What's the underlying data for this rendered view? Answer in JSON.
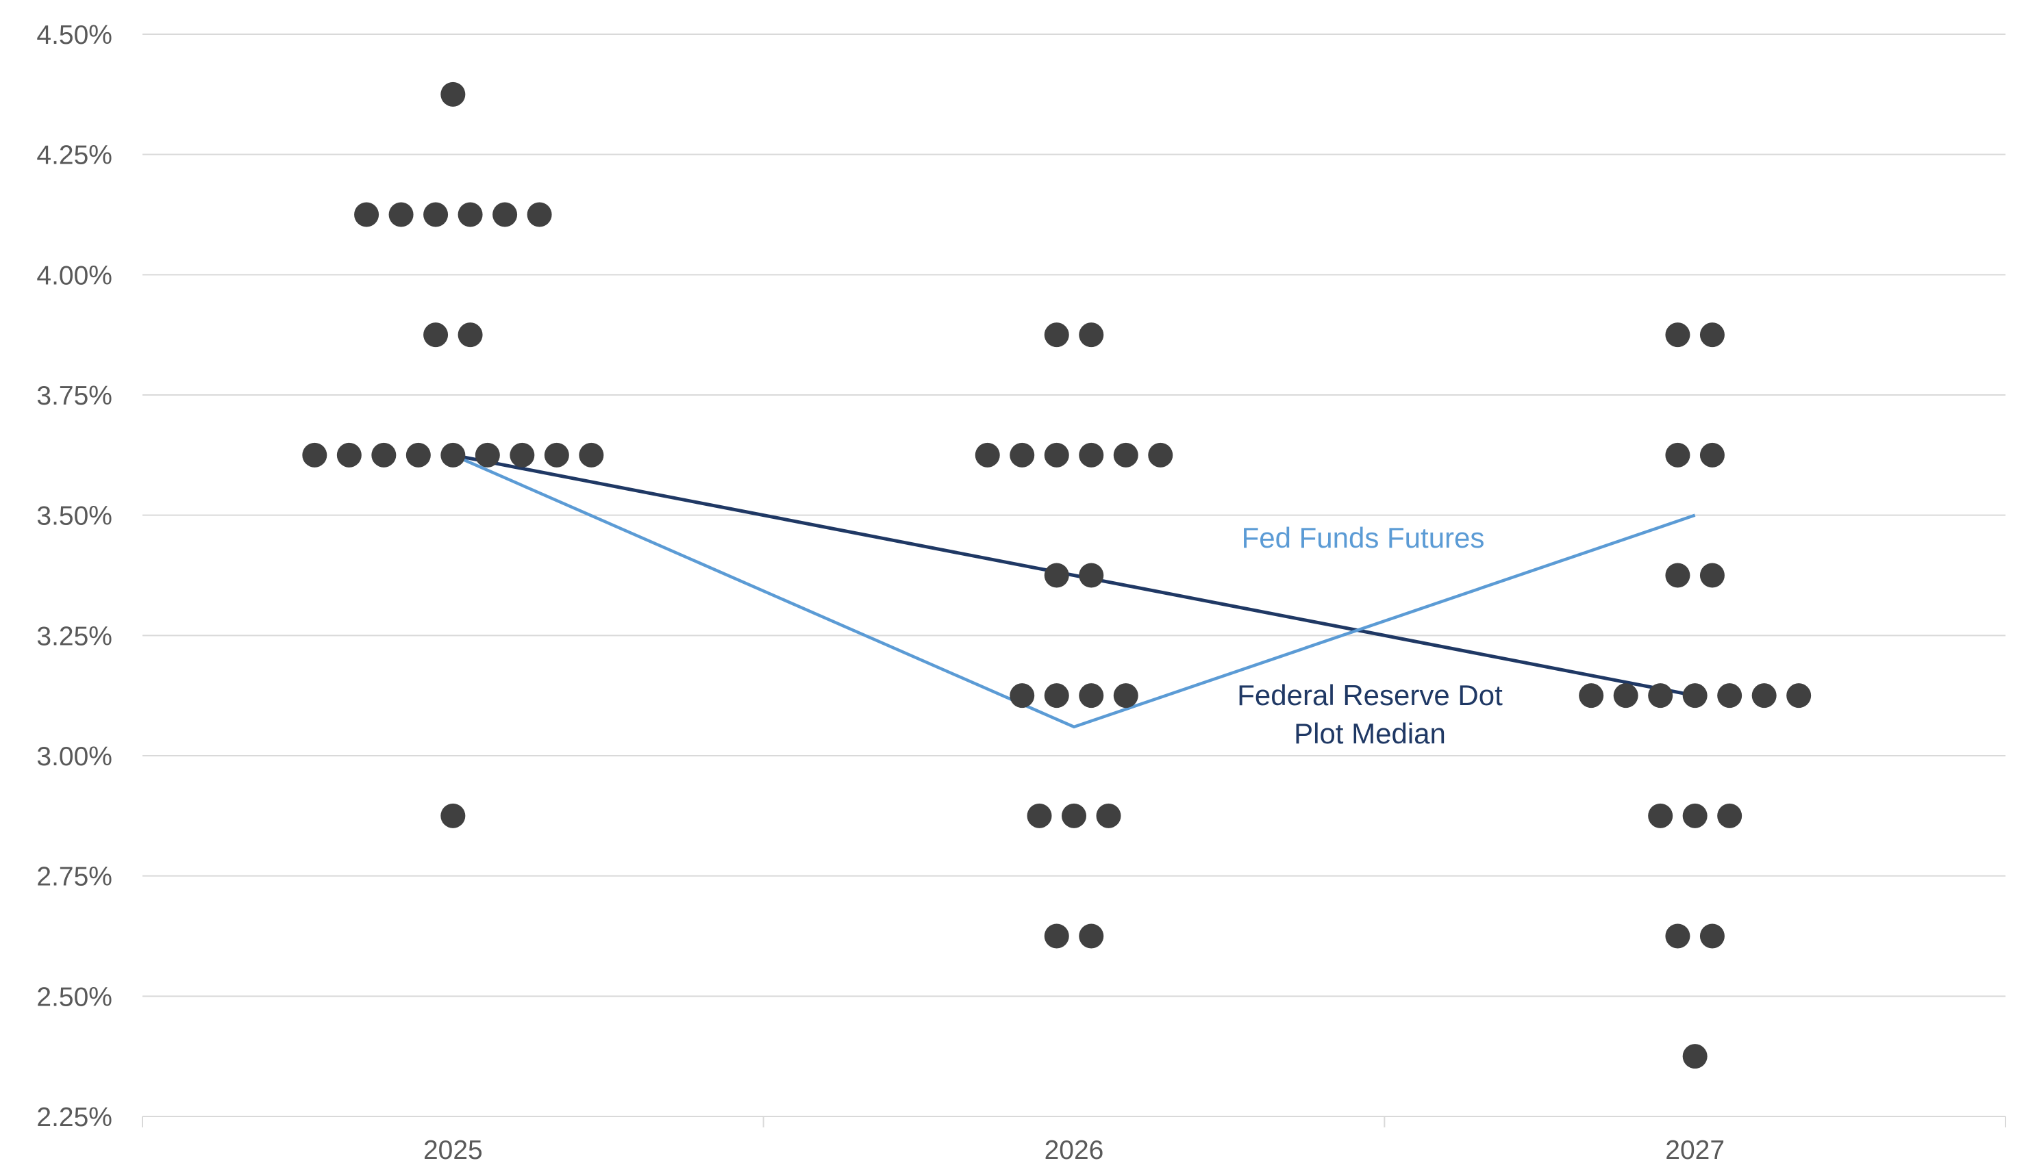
{
  "chart_data": {
    "type": "scatter",
    "title": "",
    "xlabel": "",
    "ylabel": "",
    "categories": [
      "2025",
      "2026",
      "2027"
    ],
    "ylim": [
      2.25,
      4.5
    ],
    "y_ticks": [
      4.5,
      4.25,
      4.0,
      3.75,
      3.5,
      3.25,
      3.0,
      2.75,
      2.5,
      2.25
    ],
    "y_tick_labels": [
      "4.50%",
      "4.25%",
      "4.00%",
      "3.75%",
      "3.50%",
      "3.25%",
      "3.00%",
      "2.75%",
      "2.50%",
      "2.25%"
    ],
    "grid": true,
    "dots": [
      {
        "category": "2025",
        "levels": [
          {
            "value": 4.375,
            "count": 1
          },
          {
            "value": 4.125,
            "count": 6
          },
          {
            "value": 3.875,
            "count": 2
          },
          {
            "value": 3.625,
            "count": 9
          },
          {
            "value": 2.875,
            "count": 1
          }
        ]
      },
      {
        "category": "2026",
        "levels": [
          {
            "value": 3.875,
            "count": 2
          },
          {
            "value": 3.625,
            "count": 6
          },
          {
            "value": 3.375,
            "count": 2
          },
          {
            "value": 3.125,
            "count": 4
          },
          {
            "value": 2.875,
            "count": 3
          },
          {
            "value": 2.625,
            "count": 2
          }
        ]
      },
      {
        "category": "2027",
        "levels": [
          {
            "value": 3.875,
            "count": 2
          },
          {
            "value": 3.625,
            "count": 2
          },
          {
            "value": 3.375,
            "count": 2
          },
          {
            "value": 3.125,
            "count": 7
          },
          {
            "value": 2.875,
            "count": 3
          },
          {
            "value": 2.625,
            "count": 2
          },
          {
            "value": 2.375,
            "count": 1
          }
        ]
      }
    ],
    "series": [
      {
        "name": "Federal Reserve Dot Plot Median",
        "values": [
          3.625,
          3.375,
          3.125
        ],
        "color": "#1f3864"
      },
      {
        "name": "Fed Funds Futures",
        "values": [
          3.625,
          3.06,
          3.5
        ],
        "color": "#5b9bd5"
      }
    ],
    "dot_color": "#404040"
  }
}
